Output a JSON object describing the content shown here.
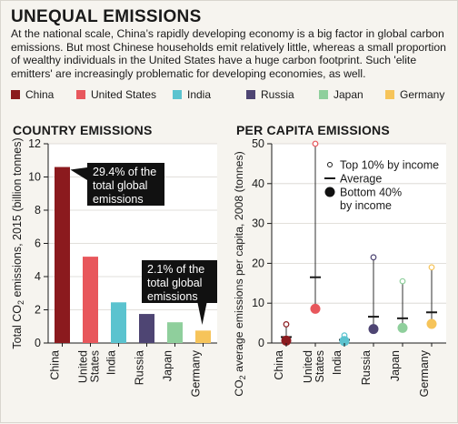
{
  "header": {
    "title": "UNEQUAL EMISSIONS",
    "intro": "At the national scale, China’s rapidly developing economy is a big factor in global carbon emissions. But most Chinese households emit relatively little, whereas a small proportion of wealthy individuals in the United States have a huge carbon footprint. Such 'elite emitters' are increasingly problematic for developing economies, as well."
  },
  "legend": [
    {
      "label": "China",
      "color": "#8b1a1e"
    },
    {
      "label": "United States",
      "color": "#e8575c"
    },
    {
      "label": "India",
      "color": "#5bc3cf"
    },
    {
      "label": "Russia",
      "color": "#4e4573"
    },
    {
      "label": "Japan",
      "color": "#8fcf9c"
    },
    {
      "label": "Germany",
      "color": "#f6c45a"
    }
  ],
  "chart_data": [
    {
      "type": "bar",
      "title": "COUNTRY EMISSIONS",
      "ylabel": "Total CO2 emissions, 2015 (billion tonnes)",
      "ylim": [
        0,
        12
      ],
      "yticks": [
        0,
        2,
        4,
        6,
        8,
        10,
        12
      ],
      "categories": [
        "China",
        "United States",
        "India",
        "Russia",
        "Japan",
        "Germany"
      ],
      "values": [
        10.6,
        5.2,
        2.45,
        1.75,
        1.25,
        0.75
      ],
      "annotations": [
        {
          "category": "China",
          "text": [
            "29.4% of the",
            "total global",
            "emissions"
          ]
        },
        {
          "category": "Germany",
          "text": [
            "2.1% of the",
            "total global",
            "emissions"
          ]
        }
      ]
    },
    {
      "type": "scatter",
      "title": "PER CAPITA EMISSIONS",
      "ylabel": "CO2 average emissions per capita, 2008 (tonnes)",
      "ylim": [
        0,
        50
      ],
      "yticks": [
        0,
        10,
        20,
        30,
        40,
        50
      ],
      "categories": [
        "China",
        "United States",
        "India",
        "Russia",
        "Japan",
        "Germany"
      ],
      "series": [
        {
          "name": "Top 10% by income",
          "values": [
            4.7,
            50,
            1.9,
            21.5,
            15.5,
            19
          ]
        },
        {
          "name": "Average",
          "values": [
            1.5,
            16.5,
            0.8,
            6.6,
            6.2,
            7.7
          ]
        },
        {
          "name": "Bottom 40% by income",
          "values": [
            0.6,
            8.6,
            0.5,
            3.5,
            3.8,
            4.8
          ]
        }
      ],
      "legend": {
        "top": "Top 10% by income",
        "avg": "Average",
        "bottom_line1": "Bottom 40%",
        "bottom_line2": "by income"
      }
    }
  ]
}
